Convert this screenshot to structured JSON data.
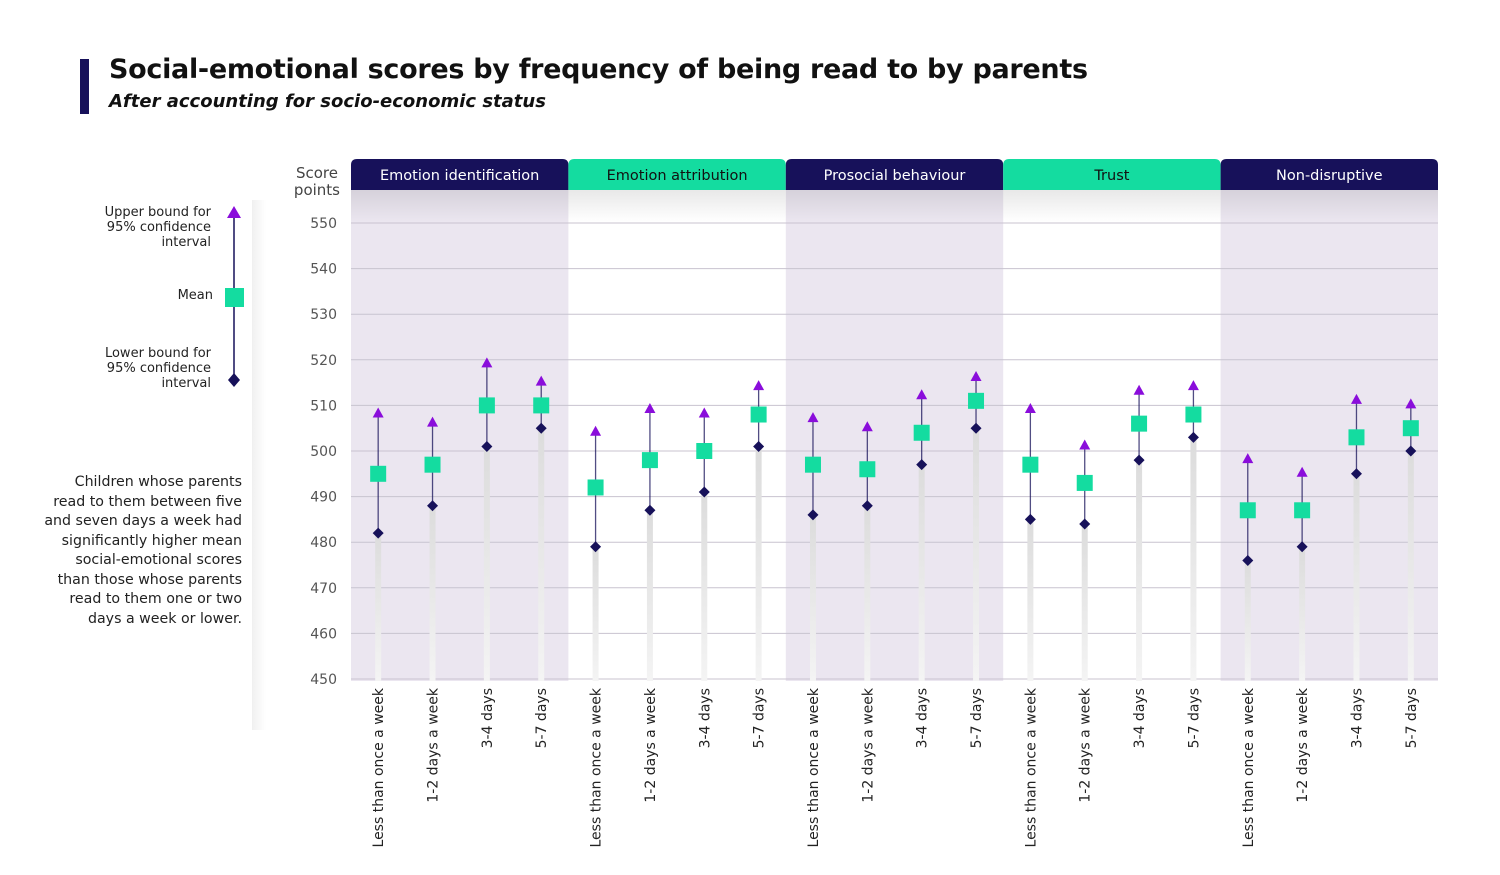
{
  "title": "Social-emotional scores by frequency of being read to by parents",
  "subtitle": "After accounting for socio-economic status",
  "note": "Children whose parents read to them between five and seven days a week had significantly higher mean social-emotional scores than those whose parents read to them one or two days a week or lower.",
  "legend": {
    "upper_line1": "Upper bound for",
    "upper_line2": "95% confidence",
    "upper_line3": "interval",
    "mean": "Mean",
    "lower_line1": "Lower bound for",
    "lower_line2": "95% confidence",
    "lower_line3": "interval"
  },
  "colors": {
    "navy": "#17115a",
    "teal": "#14dca0",
    "purple": "#8a0ddb",
    "panel_shade": "#ebe6f0",
    "grid": "#c8c3cf"
  },
  "chart_data": {
    "type": "scatter",
    "ylabel_line1": "Score",
    "ylabel_line2": "points",
    "ylim": [
      450,
      555
    ],
    "yticks": [
      450,
      460,
      470,
      480,
      490,
      500,
      510,
      520,
      530,
      540,
      550
    ],
    "grid": true,
    "categories": [
      "Less than once a week",
      "1-2 days a week",
      "3-4 days",
      "5-7 days"
    ],
    "panels": [
      {
        "name": "Emotion identification",
        "header_color": "navy",
        "shaded": true,
        "mean": [
          495,
          497,
          510,
          510
        ],
        "lower": [
          482,
          488,
          501,
          505
        ],
        "upper": [
          508,
          506,
          519,
          515
        ]
      },
      {
        "name": "Emotion attribution",
        "header_color": "teal",
        "shaded": false,
        "mean": [
          492,
          498,
          500,
          508
        ],
        "lower": [
          479,
          487,
          491,
          501
        ],
        "upper": [
          504,
          509,
          508,
          514
        ]
      },
      {
        "name": "Prosocial behaviour",
        "header_color": "navy",
        "shaded": true,
        "mean": [
          497,
          496,
          504,
          511
        ],
        "lower": [
          486,
          488,
          497,
          505
        ],
        "upper": [
          507,
          505,
          512,
          516
        ]
      },
      {
        "name": "Trust",
        "header_color": "teal",
        "shaded": false,
        "mean": [
          497,
          493,
          506,
          508
        ],
        "lower": [
          485,
          484,
          498,
          503
        ],
        "upper": [
          509,
          501,
          513,
          514
        ]
      },
      {
        "name": "Non-disruptive",
        "header_color": "navy",
        "shaded": true,
        "mean": [
          487,
          487,
          503,
          505
        ],
        "lower": [
          476,
          479,
          495,
          500
        ],
        "upper": [
          498,
          495,
          511,
          510
        ]
      }
    ]
  }
}
